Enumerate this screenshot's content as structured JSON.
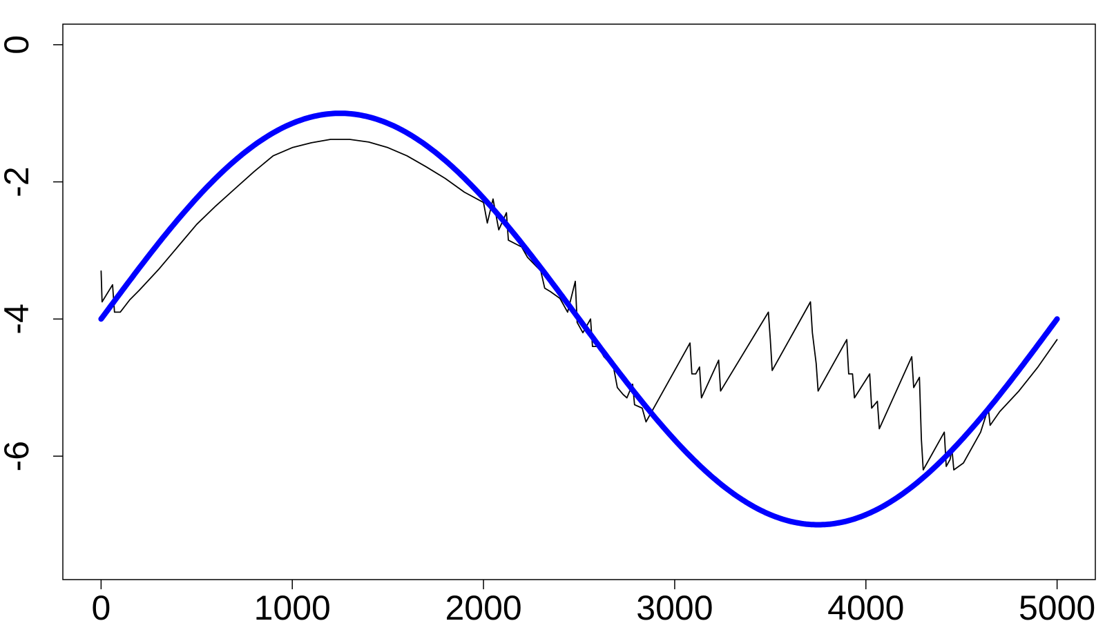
{
  "chart_data": {
    "type": "line",
    "title": "",
    "xlabel": "",
    "ylabel": "",
    "xlim": [
      -200,
      5200
    ],
    "ylim": [
      -7.8,
      0.3
    ],
    "x_ticks": [
      0,
      1000,
      2000,
      3000,
      4000,
      5000
    ],
    "x_tick_labels": [
      "0",
      "1000",
      "2000",
      "3000",
      "4000",
      "5000"
    ],
    "y_ticks": [
      0,
      -2,
      -4,
      -6
    ],
    "y_tick_labels": [
      "0",
      "-2",
      "-4",
      "-6"
    ],
    "grid": false,
    "legend": "none",
    "series": [
      {
        "style": "thin-line",
        "color": "#000000",
        "points": [
          [
            0,
            -3.3
          ],
          [
            5,
            -3.75
          ],
          [
            60,
            -3.5
          ],
          [
            70,
            -3.9
          ],
          [
            100,
            -3.9
          ],
          [
            150,
            -3.72
          ],
          [
            200,
            -3.58
          ],
          [
            300,
            -3.28
          ],
          [
            400,
            -2.95
          ],
          [
            500,
            -2.62
          ],
          [
            600,
            -2.35
          ],
          [
            700,
            -2.1
          ],
          [
            800,
            -1.85
          ],
          [
            900,
            -1.62
          ],
          [
            1000,
            -1.5
          ],
          [
            1100,
            -1.43
          ],
          [
            1200,
            -1.38
          ],
          [
            1300,
            -1.38
          ],
          [
            1400,
            -1.42
          ],
          [
            1500,
            -1.5
          ],
          [
            1600,
            -1.62
          ],
          [
            1700,
            -1.78
          ],
          [
            1800,
            -1.95
          ],
          [
            1900,
            -2.15
          ],
          [
            2000,
            -2.3
          ],
          [
            2020,
            -2.6
          ],
          [
            2050,
            -2.25
          ],
          [
            2080,
            -2.7
          ],
          [
            2120,
            -2.45
          ],
          [
            2130,
            -2.85
          ],
          [
            2200,
            -2.95
          ],
          [
            2230,
            -3.1
          ],
          [
            2300,
            -3.3
          ],
          [
            2320,
            -3.55
          ],
          [
            2350,
            -3.6
          ],
          [
            2400,
            -3.7
          ],
          [
            2440,
            -3.9
          ],
          [
            2480,
            -3.45
          ],
          [
            2490,
            -4.05
          ],
          [
            2520,
            -4.2
          ],
          [
            2560,
            -4.0
          ],
          [
            2570,
            -4.4
          ],
          [
            2600,
            -4.4
          ],
          [
            2630,
            -4.55
          ],
          [
            2680,
            -4.7
          ],
          [
            2700,
            -5.0
          ],
          [
            2730,
            -5.1
          ],
          [
            2750,
            -5.15
          ],
          [
            2780,
            -4.95
          ],
          [
            2790,
            -5.25
          ],
          [
            2830,
            -5.3
          ],
          [
            2850,
            -5.5
          ],
          [
            3080,
            -4.35
          ],
          [
            3090,
            -4.8
          ],
          [
            3110,
            -4.8
          ],
          [
            3130,
            -4.7
          ],
          [
            3140,
            -5.15
          ],
          [
            3230,
            -4.6
          ],
          [
            3240,
            -5.05
          ],
          [
            3490,
            -3.9
          ],
          [
            3500,
            -4.3
          ],
          [
            3510,
            -4.75
          ],
          [
            3710,
            -3.75
          ],
          [
            3720,
            -4.2
          ],
          [
            3740,
            -4.65
          ],
          [
            3750,
            -5.05
          ],
          [
            3900,
            -4.3
          ],
          [
            3910,
            -4.8
          ],
          [
            3930,
            -4.8
          ],
          [
            3940,
            -5.15
          ],
          [
            4020,
            -4.8
          ],
          [
            4030,
            -5.3
          ],
          [
            4060,
            -5.2
          ],
          [
            4070,
            -5.6
          ],
          [
            4240,
            -4.55
          ],
          [
            4250,
            -5.0
          ],
          [
            4280,
            -4.85
          ],
          [
            4290,
            -5.75
          ],
          [
            4300,
            -6.2
          ],
          [
            4410,
            -5.65
          ],
          [
            4420,
            -6.15
          ],
          [
            4440,
            -6.05
          ],
          [
            4450,
            -5.9
          ],
          [
            4460,
            -6.2
          ],
          [
            4510,
            -6.1
          ],
          [
            4600,
            -5.65
          ],
          [
            4640,
            -5.3
          ],
          [
            4650,
            -5.55
          ],
          [
            4700,
            -5.35
          ],
          [
            4800,
            -5.05
          ],
          [
            4900,
            -4.7
          ],
          [
            5000,
            -4.3
          ]
        ]
      },
      {
        "style": "thick-line",
        "color": "#0000ff",
        "function": "y = -4 + 3*sin(2*pi*x/5000)",
        "x_range": [
          0,
          5000
        ],
        "samples": [
          [
            0,
            -4.0
          ],
          [
            1250,
            -1.0
          ],
          [
            2500,
            -4.0
          ],
          [
            3750,
            -7.0
          ],
          [
            5000,
            -4.0
          ]
        ]
      }
    ]
  }
}
